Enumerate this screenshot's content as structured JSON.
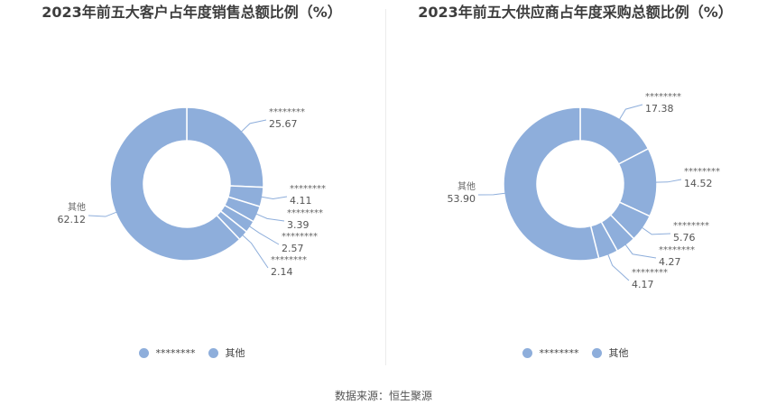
{
  "source": "数据来源：恒生聚源",
  "color": "#8eaedb",
  "chart_data": [
    {
      "type": "pie",
      "title": "2023年前五大客户占年度销售总额比例（%）",
      "categories": [
        "********",
        "********",
        "********",
        "********",
        "********",
        "其他"
      ],
      "values": [
        25.67,
        4.11,
        3.39,
        2.57,
        2.14,
        62.12
      ],
      "value_labels": [
        "25.67",
        "4.11",
        "3.39",
        "2.57",
        "2.14",
        "62.12"
      ],
      "legend": [
        "********",
        "其他"
      ],
      "legend_position": "bottom"
    },
    {
      "type": "pie",
      "title": "2023年前五大供应商占年度采购总额比例（%）",
      "categories": [
        "********",
        "********",
        "********",
        "********",
        "********",
        "其他"
      ],
      "values": [
        17.38,
        14.52,
        5.76,
        4.27,
        4.17,
        53.9
      ],
      "value_labels": [
        "17.38",
        "14.52",
        "5.76",
        "4.27",
        "4.17",
        "53.90"
      ],
      "legend": [
        "********",
        "其他"
      ],
      "legend_position": "bottom"
    }
  ]
}
